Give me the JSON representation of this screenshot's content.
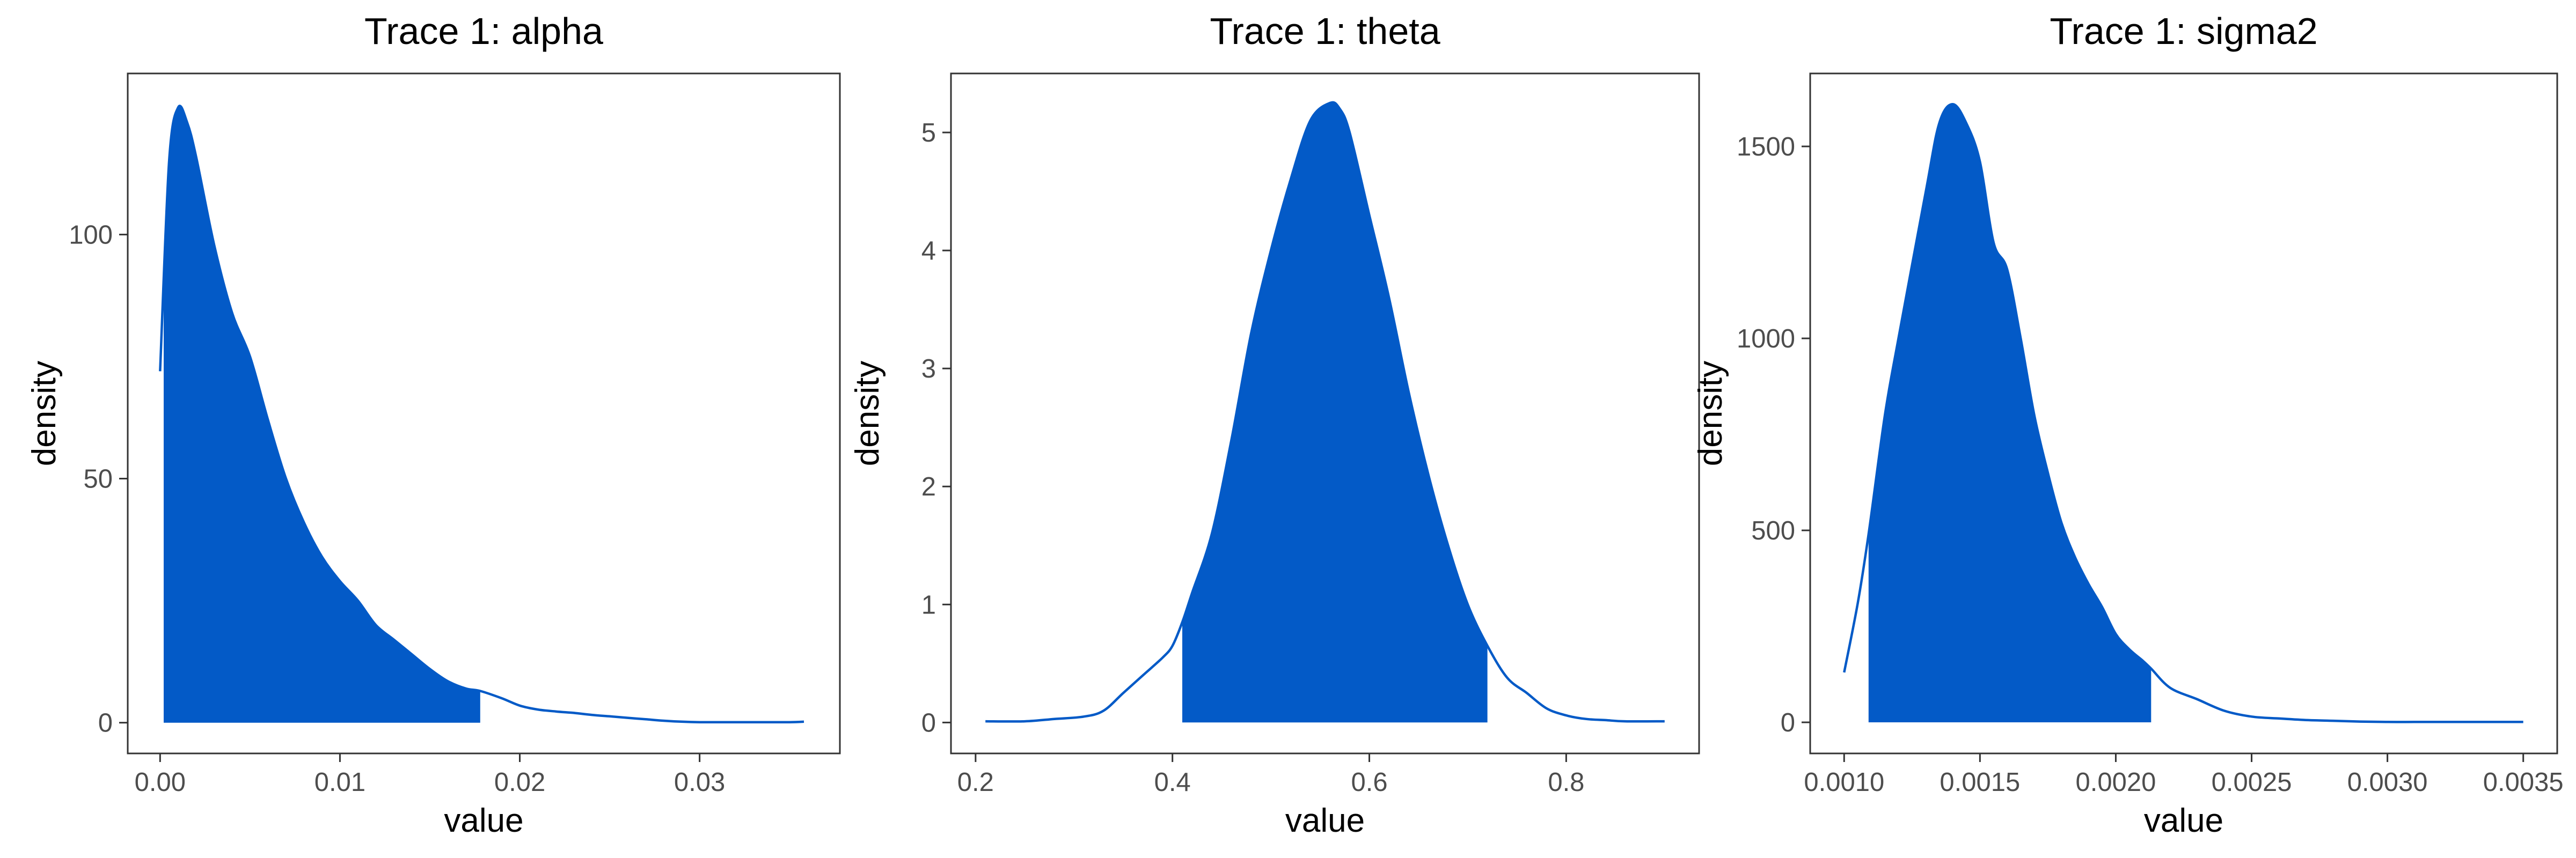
{
  "chart_data": [
    {
      "type": "area",
      "title": "Trace 1: alpha",
      "xlabel": "value",
      "ylabel": "density",
      "xlim": [
        -0.0018,
        0.0378
      ],
      "ylim": [
        -6.3,
        133
      ],
      "xticks": [
        0.0,
        0.01,
        0.02,
        0.03
      ],
      "xtick_labels": [
        "0.00",
        "0.01",
        "0.02",
        "0.03"
      ],
      "yticks": [
        0,
        50,
        100
      ],
      "ytick_labels": [
        "0",
        "50",
        "100"
      ],
      "shaded_interval": [
        0.0002,
        0.0178
      ],
      "fill_color": "#035ac7",
      "line_color": "#035ac7",
      "x": [
        0.0,
        0.0005,
        0.001,
        0.0015,
        0.002,
        0.003,
        0.004,
        0.005,
        0.006,
        0.007,
        0.008,
        0.009,
        0.01,
        0.011,
        0.012,
        0.013,
        0.014,
        0.015,
        0.016,
        0.017,
        0.0178,
        0.019,
        0.02,
        0.021,
        0.022,
        0.023,
        0.024,
        0.025,
        0.026,
        0.027,
        0.028,
        0.029,
        0.03,
        0.031,
        0.032,
        0.033,
        0.034,
        0.035,
        0.0358
      ],
      "y": [
        72,
        115,
        126,
        123,
        116,
        98,
        84,
        75,
        62,
        50,
        41,
        34,
        29,
        25,
        20,
        17,
        14,
        11,
        8.5,
        7,
        6.5,
        5,
        3.5,
        2.7,
        2.3,
        2.0,
        1.6,
        1.3,
        1.0,
        0.7,
        0.4,
        0.2,
        0.1,
        0.1,
        0.1,
        0.1,
        0.1,
        0.1,
        0.2
      ]
    },
    {
      "type": "area",
      "title": "Trace 1: theta",
      "xlabel": "value",
      "ylabel": "density",
      "xlim": [
        0.175,
        0.935
      ],
      "ylim": [
        -0.262,
        5.5
      ],
      "xticks": [
        0.2,
        0.4,
        0.6,
        0.8
      ],
      "xtick_labels": [
        "0.2",
        "0.4",
        "0.6",
        "0.8"
      ],
      "yticks": [
        0,
        1,
        2,
        3,
        4,
        5
      ],
      "ytick_labels": [
        "0",
        "1",
        "2",
        "3",
        "4",
        "5"
      ],
      "shaded_interval": [
        0.41,
        0.72
      ],
      "fill_color": "#035ac7",
      "line_color": "#035ac7",
      "x": [
        0.21,
        0.25,
        0.28,
        0.31,
        0.33,
        0.35,
        0.37,
        0.39,
        0.4,
        0.41,
        0.42,
        0.44,
        0.46,
        0.48,
        0.5,
        0.52,
        0.54,
        0.56,
        0.57,
        0.58,
        0.6,
        0.62,
        0.64,
        0.66,
        0.68,
        0.7,
        0.72,
        0.74,
        0.76,
        0.78,
        0.8,
        0.82,
        0.84,
        0.86,
        0.9
      ],
      "y": [
        0.01,
        0.01,
        0.03,
        0.05,
        0.1,
        0.25,
        0.4,
        0.55,
        0.65,
        0.85,
        1.1,
        1.6,
        2.4,
        3.3,
        4.0,
        4.6,
        5.1,
        5.25,
        5.2,
        5.0,
        4.3,
        3.6,
        2.8,
        2.1,
        1.5,
        1.0,
        0.65,
        0.38,
        0.25,
        0.12,
        0.06,
        0.03,
        0.02,
        0.01,
        0.01
      ]
    },
    {
      "type": "area",
      "title": "Trace 1: sigma2",
      "xlabel": "value",
      "ylabel": "density",
      "xlim": [
        0.000875,
        0.003625
      ],
      "ylim": [
        -81,
        1690
      ],
      "xticks": [
        0.001,
        0.0015,
        0.002,
        0.0025,
        0.003,
        0.0035
      ],
      "xtick_labels": [
        "0.0010",
        "0.0015",
        "0.0020",
        "0.0025",
        "0.0030",
        "0.0035"
      ],
      "yticks": [
        0,
        500,
        1000,
        1500
      ],
      "ytick_labels": [
        "0",
        "500",
        "1000",
        "1500"
      ],
      "shaded_interval": [
        0.00109,
        0.00213
      ],
      "fill_color": "#035ac7",
      "line_color": "#035ac7",
      "x": [
        0.001,
        0.00105,
        0.00109,
        0.00115,
        0.0012,
        0.0013,
        0.00135,
        0.0014,
        0.00145,
        0.0015,
        0.00155,
        0.0016,
        0.00165,
        0.0017,
        0.00175,
        0.0018,
        0.00185,
        0.0019,
        0.00195,
        0.002,
        0.00205,
        0.0021,
        0.00213,
        0.0022,
        0.0023,
        0.0024,
        0.0025,
        0.0026,
        0.0027,
        0.0028,
        0.0029,
        0.003,
        0.0031,
        0.0032,
        0.0033,
        0.0034,
        0.0035
      ],
      "y": [
        130,
        310,
        490,
        800,
        1000,
        1380,
        1560,
        1610,
        1560,
        1460,
        1250,
        1180,
        1000,
        800,
        650,
        520,
        430,
        360,
        300,
        230,
        190,
        160,
        140,
        90,
        60,
        30,
        15,
        10,
        6,
        4,
        2,
        1,
        1,
        1,
        1,
        1,
        1
      ]
    }
  ]
}
